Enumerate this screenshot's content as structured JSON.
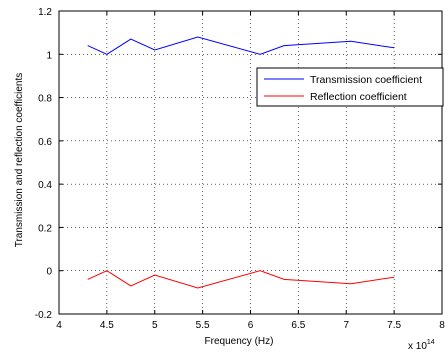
{
  "chart_data": {
    "type": "line",
    "title": "",
    "xlabel": "Frequency (Hz)",
    "ylabel": "Transmission and reflection coefficients",
    "x_multiplier_base": "x 10",
    "x_multiplier_exp": "14",
    "xlim": [
      4,
      8
    ],
    "ylim": [
      -0.2,
      1.2
    ],
    "x_ticks": [
      4,
      4.5,
      5,
      5.5,
      6,
      6.5,
      7,
      7.5,
      8
    ],
    "x_tick_labels": [
      "4",
      "4.5",
      "5",
      "5.5",
      "6",
      "6.5",
      "7",
      "7.5",
      "8"
    ],
    "y_ticks": [
      -0.2,
      0,
      0.2,
      0.4,
      0.6,
      0.8,
      1,
      1.2
    ],
    "y_tick_labels": [
      "-0.2",
      "0",
      "0.2",
      "0.4",
      "0.6",
      "0.8",
      "1",
      "1.2"
    ],
    "grid": true,
    "legend_position": "top-right",
    "series": [
      {
        "name": "Transmission coefficient",
        "color": "#0000ff",
        "x": [
          4.3,
          4.5,
          4.75,
          5.0,
          5.45,
          6.1,
          6.35,
          7.05,
          7.5
        ],
        "y": [
          1.04,
          1.0,
          1.07,
          1.02,
          1.08,
          1.0,
          1.04,
          1.06,
          1.03
        ]
      },
      {
        "name": "Reflection coefficient",
        "color": "#ff0000",
        "x": [
          4.3,
          4.5,
          4.75,
          5.0,
          5.45,
          6.1,
          6.35,
          7.05,
          7.5
        ],
        "y": [
          -0.04,
          0.0,
          -0.07,
          -0.02,
          -0.08,
          0.0,
          -0.04,
          -0.06,
          -0.03
        ]
      }
    ]
  }
}
